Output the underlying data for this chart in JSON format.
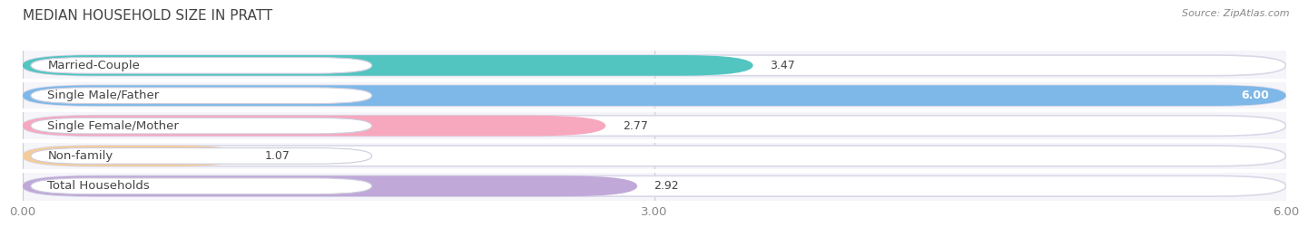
{
  "title": "MEDIAN HOUSEHOLD SIZE IN PRATT",
  "source": "Source: ZipAtlas.com",
  "categories": [
    "Married-Couple",
    "Single Male/Father",
    "Single Female/Mother",
    "Non-family",
    "Total Households"
  ],
  "values": [
    3.47,
    6.0,
    2.77,
    1.07,
    2.92
  ],
  "bar_colors": [
    "#52c5c0",
    "#7db8e8",
    "#f7a8be",
    "#f5cc98",
    "#c0a8d8"
  ],
  "background_color": "#ffffff",
  "bar_bg_color": "#ededf4",
  "row_bg_color": "#f5f5fa",
  "xlim": [
    0,
    6.0
  ],
  "xticks": [
    0.0,
    3.0,
    6.0
  ],
  "xtick_labels": [
    "0.00",
    "3.00",
    "6.00"
  ],
  "title_fontsize": 11,
  "label_fontsize": 9.5,
  "value_fontsize": 9,
  "source_fontsize": 8
}
